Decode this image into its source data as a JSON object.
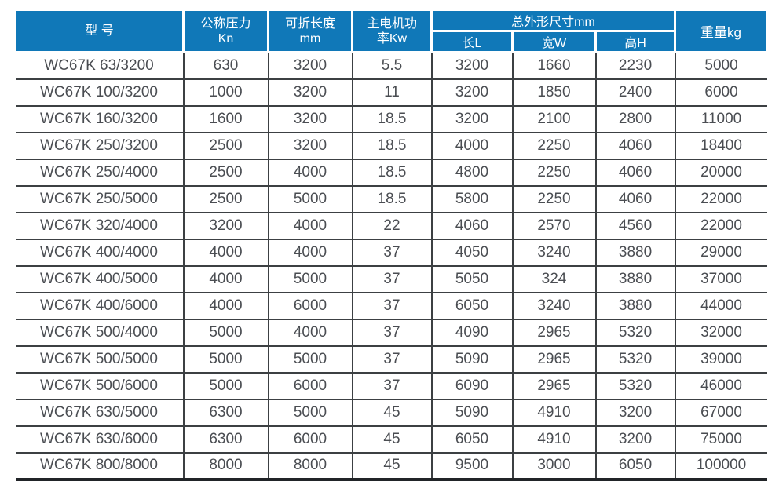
{
  "colors": {
    "header_bg": "#1078b8",
    "header_text": "#ffffff",
    "grid_line": "#3c4043",
    "bottom_border": "#212428",
    "cell_text": "#4a4d52"
  },
  "table": {
    "headers": {
      "model": "型 号",
      "pressure_line1": "公称压力",
      "pressure_line2": "Kn",
      "fold_length_line1": "可折长度",
      "fold_length_line2": "mm",
      "motor_power_line1": "主电机功",
      "motor_power_line2": "率Kw",
      "dimensions": "总外形尺寸mm",
      "dim_length": "长L",
      "dim_width": "宽W",
      "dim_height": "高H",
      "weight": "重量kg"
    },
    "rows": [
      [
        "WC67K 63/3200",
        "630",
        "3200",
        "5.5",
        "3200",
        "1660",
        "2230",
        "5000"
      ],
      [
        "WC67K 100/3200",
        "1000",
        "3200",
        "11",
        "3200",
        "1850",
        "2400",
        "6000"
      ],
      [
        "WC67K 160/3200",
        "1600",
        "3200",
        "18.5",
        "3200",
        "2100",
        "2800",
        "11000"
      ],
      [
        "WC67K 250/3200",
        "2500",
        "3200",
        "18.5",
        "4000",
        "2250",
        "4060",
        "18400"
      ],
      [
        "WC67K 250/4000",
        "2500",
        "4000",
        "18.5",
        "4800",
        "2250",
        "4060",
        "20000"
      ],
      [
        "WC67K 250/5000",
        "2500",
        "5000",
        "18.5",
        "5800",
        "2250",
        "4060",
        "22000"
      ],
      [
        "WC67K 320/4000",
        "3200",
        "4000",
        "22",
        "4060",
        "2570",
        "4560",
        "22000"
      ],
      [
        "WC67K 400/4000",
        "4000",
        "4000",
        "37",
        "4050",
        "3240",
        "3880",
        "29000"
      ],
      [
        "WC67K 400/5000",
        "4000",
        "5000",
        "37",
        "5050",
        "324",
        "3880",
        "37000"
      ],
      [
        "WC67K 400/6000",
        "4000",
        "6000",
        "37",
        "6050",
        "3240",
        "3880",
        "44000"
      ],
      [
        "WC67K 500/4000",
        "5000",
        "4000",
        "37",
        "4090",
        "2965",
        "5320",
        "32000"
      ],
      [
        "WC67K 500/5000",
        "5000",
        "5000",
        "37",
        "5090",
        "2965",
        "5320",
        "39000"
      ],
      [
        "WC67K 500/6000",
        "5000",
        "6000",
        "37",
        "6090",
        "2965",
        "5320",
        "46000"
      ],
      [
        "WC67K 630/5000",
        "6300",
        "5000",
        "45",
        "5090",
        "4910",
        "3200",
        "67000"
      ],
      [
        "WC67K 630/6000",
        "6300",
        "6000",
        "45",
        "6050",
        "4910",
        "3200",
        "75000"
      ],
      [
        "WC67K 800/8000",
        "8000",
        "8000",
        "45",
        "9500",
        "3000",
        "6050",
        "100000"
      ]
    ]
  }
}
